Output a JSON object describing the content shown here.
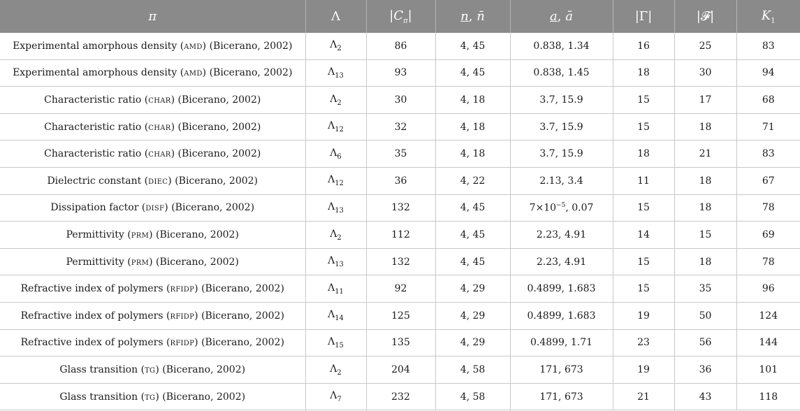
{
  "headers": {
    "pi": "π",
    "lambda": "Λ",
    "c_pi_pre": "|",
    "c_pi_main": "C",
    "c_pi_sub": "π",
    "c_pi_post": "|",
    "n_under": "n",
    "n_sep": ", ",
    "n_bar": "n̄",
    "a_under": "a",
    "a_sep": ", ",
    "a_bar": "ā",
    "gamma": "|Γ|",
    "f": "|𝓕|",
    "k_main": "K",
    "k_sub": "1"
  },
  "rows": [
    {
      "name": "Experimental amorphous density",
      "abbr": "amd",
      "cite": "(Bicerano, 2002)",
      "lambda_sub": "2",
      "c": "86",
      "n": "4, 45",
      "a": "0.838, 1.34",
      "gamma": "16",
      "f": "25",
      "k": "83"
    },
    {
      "name": "Experimental amorphous density",
      "abbr": "amd",
      "cite": "(Bicerano, 2002)",
      "lambda_sub": "13",
      "c": "93",
      "n": "4, 45",
      "a": "0.838, 1.45",
      "gamma": "18",
      "f": "30",
      "k": "94"
    },
    {
      "name": "Characteristic ratio",
      "abbr": "char",
      "cite": "(Bicerano, 2002)",
      "lambda_sub": "2",
      "c": "30",
      "n": "4, 18",
      "a": "3.7, 15.9",
      "gamma": "15",
      "f": "17",
      "k": "68"
    },
    {
      "name": "Characteristic ratio",
      "abbr": "char",
      "cite": "(Bicerano, 2002)",
      "lambda_sub": "12",
      "c": "32",
      "n": "4, 18",
      "a": "3.7, 15.9",
      "gamma": "15",
      "f": "18",
      "k": "71"
    },
    {
      "name": "Characteristic ratio",
      "abbr": "char",
      "cite": "(Bicerano, 2002)",
      "lambda_sub": "6",
      "c": "35",
      "n": "4, 18",
      "a": "3.7, 15.9",
      "gamma": "18",
      "f": "21",
      "k": "83"
    },
    {
      "name": "Dielectric constant",
      "abbr": "diec",
      "cite": "(Bicerano, 2002)",
      "lambda_sub": "12",
      "c": "36",
      "n": "4, 22",
      "a": "2.13, 3.4",
      "gamma": "11",
      "f": "18",
      "k": "67"
    },
    {
      "name": "Dissipation factor",
      "abbr": "disf",
      "cite": "(Bicerano, 2002)",
      "lambda_sub": "13",
      "c": "132",
      "n": "4, 45",
      "a_pre": "7×10",
      "a_exp": "−5",
      "a_post": ", 0.07",
      "gamma": "15",
      "f": "18",
      "k": "78"
    },
    {
      "name": "Permittivity",
      "abbr": "prm",
      "cite": "(Bicerano, 2002)",
      "lambda_sub": "2",
      "c": "112",
      "n": "4, 45",
      "a": "2.23, 4.91",
      "gamma": "14",
      "f": "15",
      "k": "69"
    },
    {
      "name": "Permittivity",
      "abbr": "prm",
      "cite": "(Bicerano, 2002)",
      "lambda_sub": "13",
      "c": "132",
      "n": "4, 45",
      "a": "2.23, 4.91",
      "gamma": "15",
      "f": "18",
      "k": "78"
    },
    {
      "name": "Refractive index of polymers",
      "abbr": "rfidp",
      "cite": "(Bicerano, 2002)",
      "lambda_sub": "11",
      "c": "92",
      "n": "4, 29",
      "a": "0.4899, 1.683",
      "gamma": "15",
      "f": "35",
      "k": "96"
    },
    {
      "name": "Refractive index of polymers",
      "abbr": "rfidp",
      "cite": "(Bicerano, 2002)",
      "lambda_sub": "14",
      "c": "125",
      "n": "4, 29",
      "a": "0.4899, 1.683",
      "gamma": "19",
      "f": "50",
      "k": "124"
    },
    {
      "name": "Refractive index of polymers",
      "abbr": "rfidp",
      "cite": "(Bicerano, 2002)",
      "lambda_sub": "15",
      "c": "135",
      "n": "4, 29",
      "a": "0.4899, 1.71",
      "gamma": "23",
      "f": "56",
      "k": "144"
    },
    {
      "name": "Glass transition",
      "abbr": "tg",
      "cite": "(Bicerano, 2002)",
      "lambda_sub": "2",
      "c": "204",
      "n": "4, 58",
      "a": "171, 673",
      "gamma": "19",
      "f": "36",
      "k": "101"
    },
    {
      "name": "Glass transition",
      "abbr": "tg",
      "cite": "(Bicerano, 2002)",
      "lambda_sub": "7",
      "c": "232",
      "n": "4, 58",
      "a": "171, 673",
      "gamma": "21",
      "f": "43",
      "k": "118"
    }
  ]
}
